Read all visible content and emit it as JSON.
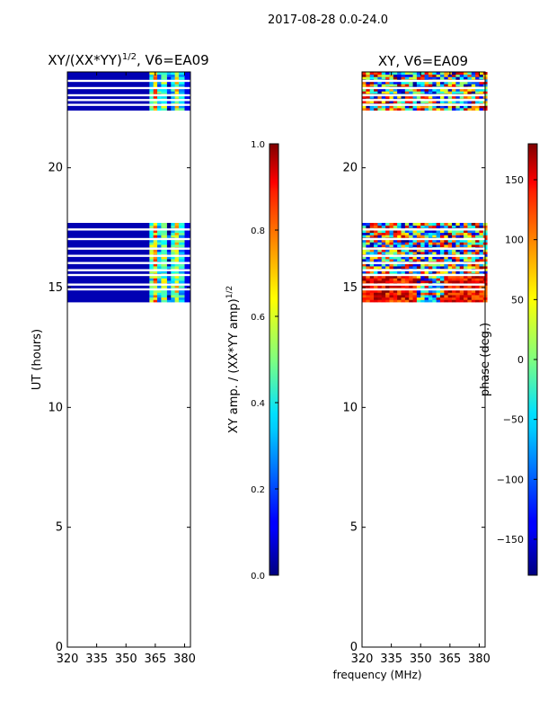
{
  "suptitle": "2017-08-28 0.0-24.0",
  "shared_xlabel": "frequency (MHz)",
  "chart_data": [
    {
      "type": "heatmap",
      "title_main": "XY/(XX*YY)",
      "title_exp": "1/2",
      "title_suffix": ", V6=EA09",
      "ylabel": "UT (hours)",
      "xlim": [
        320,
        383
      ],
      "ylim": [
        0,
        24
      ],
      "xticks": [
        320,
        335,
        350,
        365,
        380
      ],
      "yticks": [
        0,
        5,
        10,
        15,
        20
      ],
      "colorbar": {
        "label_main": "XY amp. / (XX*YY amp)",
        "label_exp": "1/2",
        "range": [
          0.0,
          1.0
        ],
        "ticks": [
          "0.0",
          "0.2",
          "0.4",
          "0.6",
          "0.8",
          "1.0"
        ],
        "colormap": "jet"
      },
      "observed_blocks_hours": [
        [
          14.4,
          17.7
        ],
        [
          22.4,
          24.0
        ]
      ],
      "gap_rows_hours": [
        17.4,
        17.0,
        16.6,
        16.3,
        16.0,
        15.7,
        15.5,
        15.1,
        14.9,
        23.6,
        23.3,
        23.0,
        22.8,
        22.6
      ],
      "band_profile": [
        {
          "f0": 320,
          "f1": 362,
          "value": 0.05
        },
        {
          "f0": 362,
          "f1": 364,
          "value": 0.45
        },
        {
          "f0": 364,
          "f1": 366,
          "value": 0.7
        },
        {
          "f0": 366,
          "f1": 368,
          "value": 0.35
        },
        {
          "f0": 368,
          "f1": 371,
          "value": 0.5
        },
        {
          "f0": 371,
          "f1": 373,
          "value": 0.15
        },
        {
          "f0": 373,
          "f1": 375,
          "value": 0.4
        },
        {
          "f0": 375,
          "f1": 377,
          "value": 0.6
        },
        {
          "f0": 377,
          "f1": 380,
          "value": 0.35
        },
        {
          "f0": 380,
          "f1": 383,
          "value": 0.1
        }
      ]
    },
    {
      "type": "heatmap",
      "title_main": "XY, V6=EA09",
      "ylabel": "",
      "xlim": [
        320,
        383
      ],
      "ylim": [
        0,
        24
      ],
      "xticks": [
        320,
        335,
        350,
        365,
        380
      ],
      "yticks": [
        0,
        5,
        10,
        15,
        20
      ],
      "colorbar": {
        "label_main": "phase (deg.)",
        "range": [
          -180,
          180
        ],
        "ticks": [
          "−150",
          "−100",
          "−50",
          "0",
          "50",
          "100",
          "150"
        ],
        "colormap": "jet"
      },
      "observed_blocks_hours": [
        [
          14.4,
          17.7
        ],
        [
          22.4,
          24.0
        ]
      ],
      "gap_rows_hours": [
        17.4,
        17.0,
        16.6,
        16.3,
        16.0,
        15.7,
        15.5,
        15.1,
        14.9,
        23.6,
        23.3,
        23.0,
        22.8,
        22.6
      ],
      "phase_range_deg": [
        -180,
        180
      ]
    }
  ]
}
